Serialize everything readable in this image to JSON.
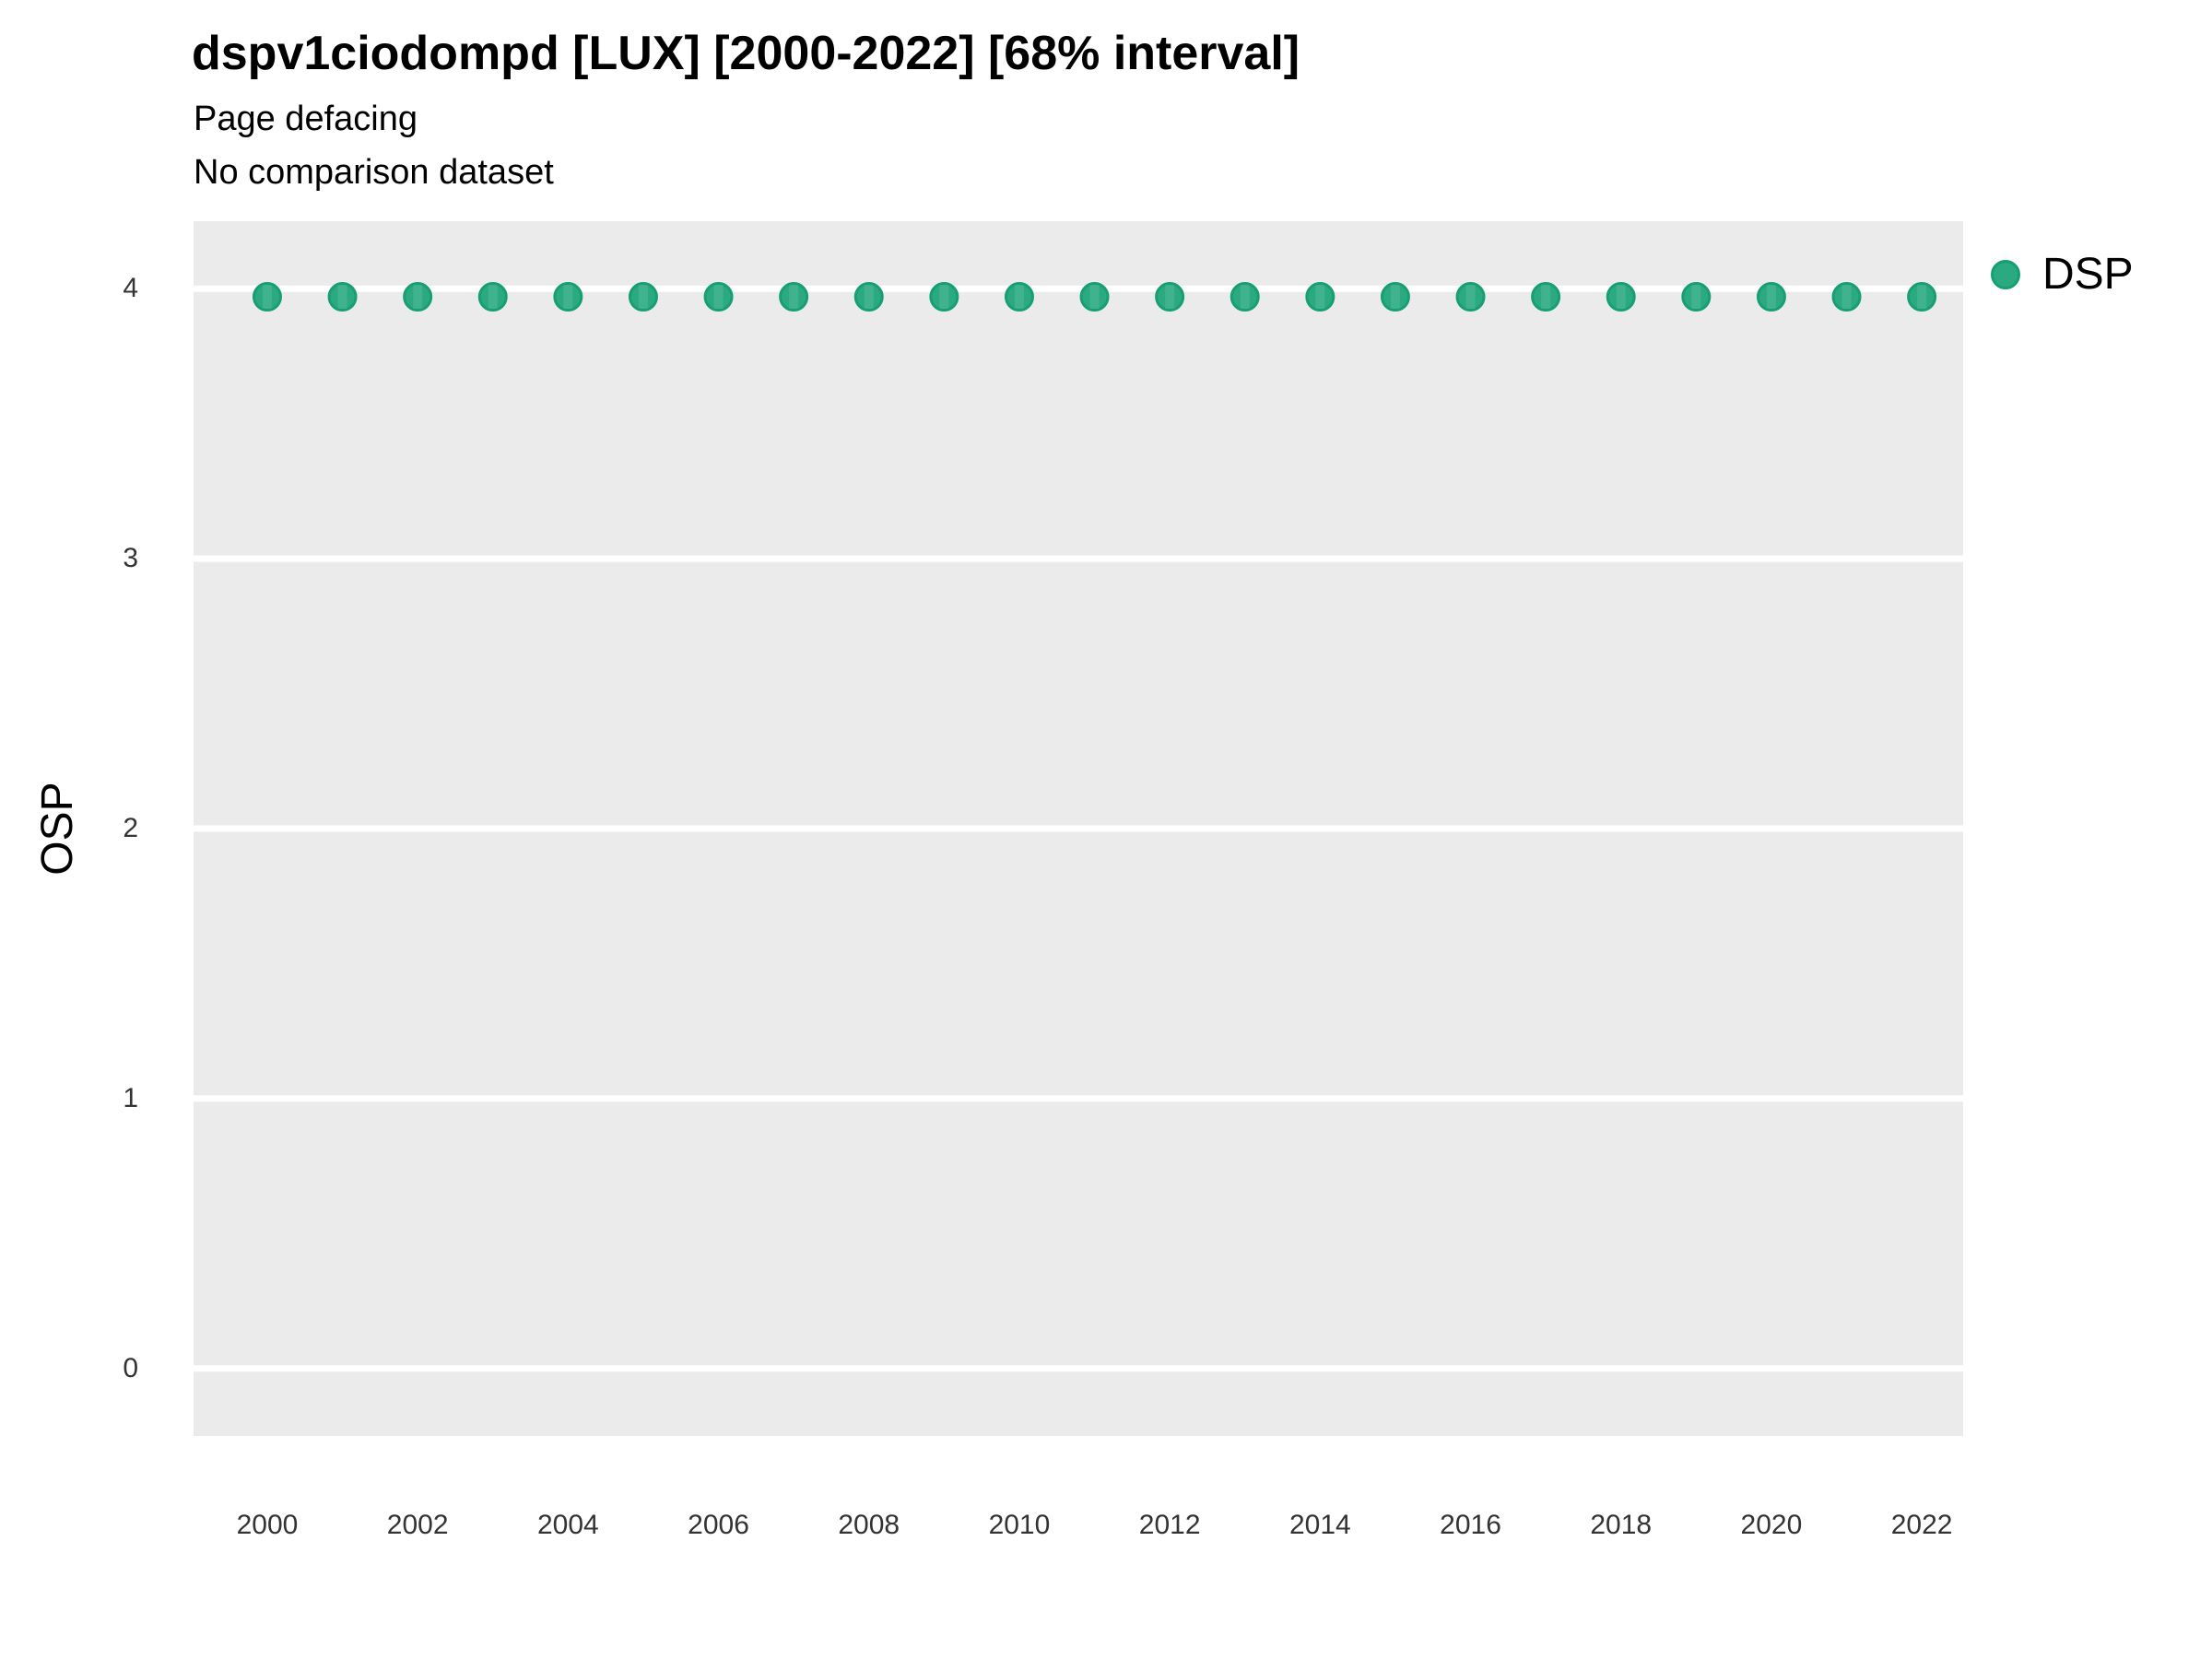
{
  "chart": {
    "title": "dspv1ciodompd [LUX] [2000-2022] [68% interval]",
    "subtitle1": "Page defacing",
    "subtitle2": "No comparison dataset",
    "ylabel": "OSP",
    "xlabel": "",
    "legend": {
      "label": "DSP"
    }
  },
  "chart_data": {
    "type": "scatter",
    "title": "dspv1ciodompd [LUX] [2000-2022] [68% interval]",
    "subtitle": [
      "Page defacing",
      "No comparison dataset"
    ],
    "xlabel": "",
    "ylabel": "OSP",
    "legend_position": "right",
    "grid": "horizontal-major-only",
    "panel_bg": "#EBEBEB",
    "grid_color": "#FFFFFF",
    "point_color": "#2BAA81",
    "point_edge_color": "#179E73",
    "xlim": [
      1999.02,
      2022.55
    ],
    "ylim": [
      -0.25,
      4.25
    ],
    "x_ticks": [
      2000,
      2002,
      2004,
      2006,
      2008,
      2010,
      2012,
      2014,
      2016,
      2018,
      2020,
      2022
    ],
    "y_ticks": [
      0,
      1,
      2,
      3,
      4
    ],
    "series": [
      {
        "name": "DSP",
        "x": [
          2000,
          2001,
          2002,
          2003,
          2004,
          2005,
          2006,
          2007,
          2008,
          2009,
          2010,
          2011,
          2012,
          2013,
          2014,
          2015,
          2016,
          2017,
          2018,
          2019,
          2020,
          2021,
          2022
        ],
        "y": [
          3.97,
          3.97,
          3.97,
          3.97,
          3.97,
          3.97,
          3.97,
          3.97,
          3.97,
          3.97,
          3.97,
          3.97,
          3.97,
          3.97,
          3.97,
          3.97,
          3.97,
          3.97,
          3.97,
          3.97,
          3.97,
          3.97,
          3.97
        ]
      }
    ]
  }
}
